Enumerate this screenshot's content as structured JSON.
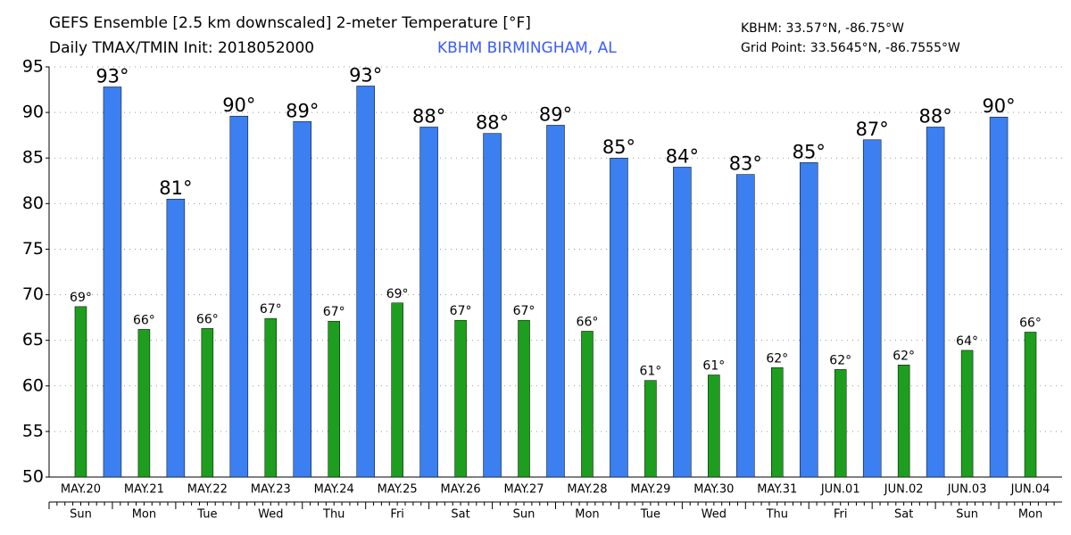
{
  "chart_data": {
    "type": "bar",
    "title": "GEFS Ensemble [2.5 km downscaled] 2-meter Temperature [°F]",
    "subtitle": "Daily TMAX/TMIN Init: 2018052000",
    "station": "KBHM BIRMINGHAM, AL",
    "station_location": "KBHM: 33.57°N, -86.75°W",
    "grid_point": "Grid Point: 33.5645°N, -86.7555°W",
    "categories": [
      "MAY.20",
      "MAY.21",
      "MAY.22",
      "MAY.23",
      "MAY.24",
      "MAY.25",
      "MAY.26",
      "MAY.27",
      "MAY.28",
      "MAY.29",
      "MAY.30",
      "MAY.31",
      "JUN.01",
      "JUN.02",
      "JUN.03",
      "JUN.04"
    ],
    "weekdays": [
      "Sun",
      "Mon",
      "Tue",
      "Wed",
      "Thu",
      "Fri",
      "Sat",
      "Sun",
      "Mon",
      "Tue",
      "Wed",
      "Thu",
      "Fri",
      "Sat",
      "Sun",
      "Mon"
    ],
    "series": [
      {
        "color": "#1e9e1e",
        "offset": "day",
        "values": [
          68.7,
          66.2,
          66.3,
          67.4,
          67.1,
          69.1,
          67.2,
          67.2,
          66.0,
          60.6,
          61.2,
          62.0,
          61.8,
          62.3,
          63.9,
          65.9
        ],
        "value_labels": [
          "69°",
          "66°",
          "66°",
          "67°",
          "67°",
          "69°",
          "67°",
          "67°",
          "66°",
          "61°",
          "61°",
          "62°",
          "62°",
          "62°",
          "64°",
          "66°"
        ]
      },
      {
        "color": "#3b7ff0",
        "offset": "between",
        "values": [
          92.8,
          80.5,
          89.6,
          89.0,
          92.9,
          88.4,
          87.7,
          88.6,
          85.0,
          84.0,
          83.2,
          84.5,
          87.0,
          88.4,
          89.5,
          null
        ],
        "value_labels": [
          "93°",
          "81°",
          "90°",
          "89°",
          "93°",
          "88°",
          "88°",
          "89°",
          "85°",
          "84°",
          "83°",
          "85°",
          "87°",
          "88°",
          "90°",
          null
        ]
      }
    ],
    "ylim": [
      50,
      95
    ],
    "yticks": [
      50,
      55,
      60,
      65,
      70,
      75,
      80,
      85,
      90,
      95
    ],
    "grid": true
  }
}
